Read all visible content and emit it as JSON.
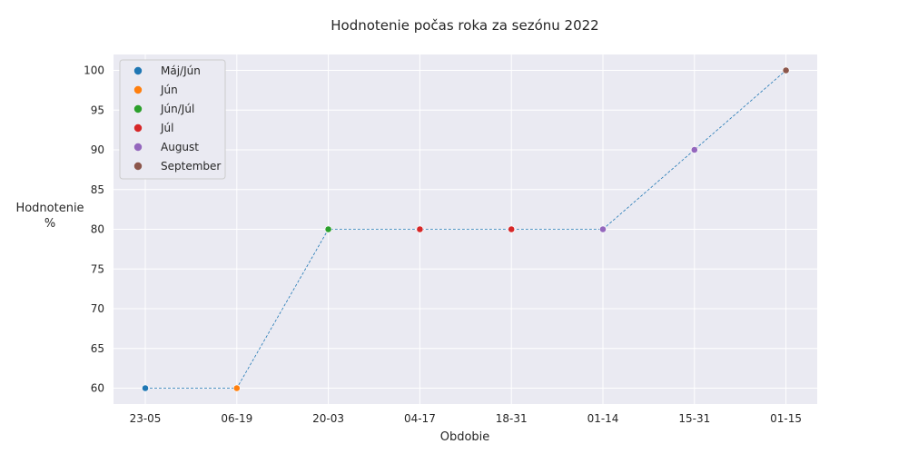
{
  "chart_data": {
    "type": "scatter",
    "title": "Hodnotenie počas roka za sezónu 2022",
    "xlabel": "Obdobie",
    "ylabel_lines": [
      "Hodnotenie",
      "%"
    ],
    "categories": [
      "23-05",
      "06-19",
      "20-03",
      "04-17",
      "18-31",
      "01-14",
      "15-31",
      "01-15"
    ],
    "ylim": [
      58,
      102
    ],
    "yticks": [
      60,
      65,
      70,
      75,
      80,
      85,
      90,
      95,
      100
    ],
    "grid": true,
    "legend_position": "upper-left",
    "connector_line": {
      "style": "dashed",
      "color": "#1f77b4"
    },
    "series": [
      {
        "name": "Máj/Jún",
        "color": "#1f77b4",
        "points": [
          {
            "x": "23-05",
            "y": 60
          }
        ]
      },
      {
        "name": "Jún",
        "color": "#ff7f0e",
        "points": [
          {
            "x": "06-19",
            "y": 60
          }
        ]
      },
      {
        "name": "Jún/Júl",
        "color": "#2ca02c",
        "points": [
          {
            "x": "20-03",
            "y": 80
          }
        ]
      },
      {
        "name": "Júl",
        "color": "#d62728",
        "points": [
          {
            "x": "04-17",
            "y": 80
          },
          {
            "x": "18-31",
            "y": 80
          }
        ]
      },
      {
        "name": "August",
        "color": "#9467bd",
        "points": [
          {
            "x": "01-14",
            "y": 80
          },
          {
            "x": "15-31",
            "y": 90
          }
        ]
      },
      {
        "name": "September",
        "color": "#8c564b",
        "points": [
          {
            "x": "01-15",
            "y": 100
          }
        ]
      }
    ]
  }
}
